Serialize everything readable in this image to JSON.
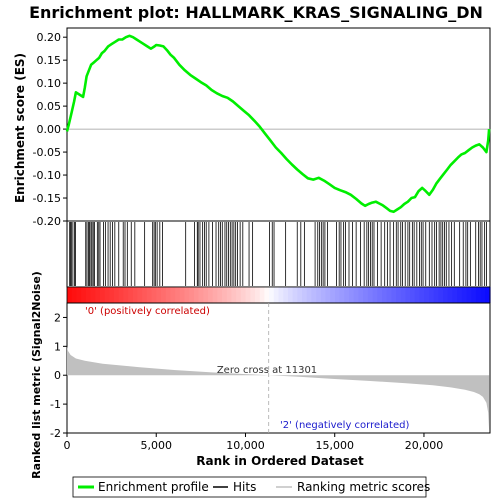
{
  "chart_data": {
    "type": "line",
    "title": "Enrichment plot: HALLMARK_KRAS_SIGNALING_DN",
    "top_panel": {
      "ylabel": "Enrichment score (ES)",
      "ylim": [
        -0.2,
        0.22
      ],
      "yticks": [
        "0.20",
        "0.15",
        "0.10",
        "0.05",
        "0.00",
        "-0.05",
        "-0.10",
        "-0.15",
        "-0.20"
      ],
      "ytick_values": [
        0.2,
        0.15,
        0.1,
        0.05,
        0.0,
        -0.05,
        -0.1,
        -0.15,
        -0.2
      ],
      "series": [
        {
          "name": "Enrichment profile",
          "color": "#00ee00",
          "x": [
            0,
            100,
            250,
            400,
            500,
            700,
            900,
            1000,
            1100,
            1200,
            1350,
            1500,
            1650,
            1800,
            1950,
            2100,
            2300,
            2500,
            2700,
            2900,
            3100,
            3300,
            3500,
            3700,
            3900,
            4100,
            4300,
            4500,
            4700,
            4900,
            5000,
            5200,
            5400,
            5600,
            5800,
            6000,
            6300,
            6600,
            6900,
            7200,
            7500,
            7800,
            8100,
            8400,
            8700,
            9000,
            9300,
            9600,
            9900,
            10200,
            10500,
            10800,
            11100,
            11400,
            11700,
            12000,
            12300,
            12600,
            12900,
            13200,
            13500,
            13800,
            14100,
            14400,
            14700,
            15000,
            15300,
            15600,
            15900,
            16200,
            16500,
            16700,
            16900,
            17100,
            17300,
            17500,
            17700,
            17900,
            18100,
            18300,
            18500,
            18700,
            18900,
            19100,
            19300,
            19500,
            19700,
            19900,
            20100,
            20300,
            20500,
            20700,
            20900,
            21100,
            21300,
            21500,
            21700,
            21900,
            22100,
            22300,
            22500,
            22700,
            22900,
            23100,
            23300,
            23500,
            23600,
            23650
          ],
          "y": [
            -0.005,
            0.01,
            0.035,
            0.06,
            0.08,
            0.075,
            0.07,
            0.09,
            0.115,
            0.125,
            0.14,
            0.145,
            0.15,
            0.155,
            0.165,
            0.17,
            0.18,
            0.185,
            0.19,
            0.195,
            0.195,
            0.2,
            0.203,
            0.2,
            0.195,
            0.19,
            0.185,
            0.18,
            0.175,
            0.18,
            0.183,
            0.182,
            0.18,
            0.172,
            0.162,
            0.155,
            0.14,
            0.128,
            0.118,
            0.11,
            0.102,
            0.095,
            0.085,
            0.078,
            0.072,
            0.068,
            0.06,
            0.05,
            0.04,
            0.03,
            0.018,
            0.005,
            -0.01,
            -0.025,
            -0.04,
            -0.052,
            -0.065,
            -0.077,
            -0.088,
            -0.098,
            -0.107,
            -0.11,
            -0.106,
            -0.112,
            -0.12,
            -0.128,
            -0.133,
            -0.137,
            -0.143,
            -0.152,
            -0.162,
            -0.167,
            -0.163,
            -0.16,
            -0.158,
            -0.162,
            -0.166,
            -0.172,
            -0.178,
            -0.18,
            -0.175,
            -0.17,
            -0.163,
            -0.158,
            -0.15,
            -0.148,
            -0.135,
            -0.128,
            -0.135,
            -0.143,
            -0.132,
            -0.118,
            -0.108,
            -0.098,
            -0.088,
            -0.078,
            -0.07,
            -0.062,
            -0.055,
            -0.052,
            -0.046,
            -0.04,
            -0.036,
            -0.033,
            -0.04,
            -0.05,
            -0.025,
            0.0
          ]
        }
      ]
    },
    "hits_panel": {
      "hit_positions": [
        150,
        200,
        260,
        330,
        420,
        480,
        1050,
        1120,
        1200,
        1260,
        1340,
        1400,
        1470,
        1540,
        1700,
        1780,
        1850,
        2050,
        2150,
        2300,
        2420,
        2550,
        2680,
        2900,
        3150,
        3250,
        3380,
        3600,
        3800,
        4350,
        4800,
        4880,
        4950,
        5050,
        5200,
        5350,
        6650,
        7150,
        7300,
        7350,
        7450,
        7600,
        7700,
        7800,
        7950,
        8150,
        8350,
        8500,
        8600,
        8700,
        8850,
        8950,
        9050,
        9150,
        9250,
        9350,
        9450,
        9550,
        9700,
        9850,
        10200,
        10400,
        11350,
        11500,
        11600,
        12250,
        12900,
        13100,
        13300,
        13900,
        14050,
        14150,
        14250,
        14350,
        14450,
        14600,
        15100,
        15250,
        15350,
        15500,
        15600,
        15800,
        16000,
        16200,
        16450,
        16650,
        16800,
        16900,
        17000,
        17100,
        17200,
        17400,
        17600,
        17800,
        17950,
        18100,
        18300,
        18450,
        18550,
        18700,
        18800,
        18950,
        19100,
        19200,
        19350,
        19450,
        19600,
        19750,
        19850,
        19950,
        20100,
        20300,
        20450,
        20600,
        20700,
        20850,
        20950,
        21050,
        21150,
        21250,
        21400,
        21550,
        21700,
        22000,
        22200,
        22350,
        22450,
        22600,
        22900,
        23050,
        23150,
        23250,
        23400,
        23500
      ]
    },
    "ranked_panel": {
      "ylabel": "Ranked list metric (Signal2Noise)",
      "xlabel": "Rank in Ordered Dataset",
      "ylim": [
        -2,
        2.5
      ],
      "yticks": [
        "2",
        "1",
        "0",
        "-1",
        "-2"
      ],
      "ytick_values": [
        2,
        1,
        0,
        -1,
        -2
      ],
      "xlim": [
        0,
        23700
      ],
      "xticks": [
        "0",
        "5,000",
        "10,000",
        "15,000",
        "20,000"
      ],
      "xtick_values": [
        0,
        5000,
        10000,
        15000,
        20000
      ],
      "zero_cross": 11301,
      "zero_cross_label": "Zero cross at 11301",
      "positive_label": "'0' (positively correlated)",
      "negative_label": "'2' (negatively correlated)",
      "metric_x": [
        0,
        50,
        200,
        500,
        1000,
        2000,
        4000,
        6000,
        8000,
        10000,
        11301,
        13000,
        15000,
        17000,
        19000,
        20500,
        21500,
        22300,
        22800,
        23100,
        23300,
        23500,
        23600,
        23650
      ],
      "metric_y": [
        1.0,
        0.85,
        0.7,
        0.58,
        0.5,
        0.4,
        0.28,
        0.18,
        0.1,
        0.04,
        0.0,
        -0.05,
        -0.13,
        -0.2,
        -0.28,
        -0.35,
        -0.42,
        -0.5,
        -0.58,
        -0.66,
        -0.75,
        -0.95,
        -1.3,
        -1.9
      ]
    },
    "legend": {
      "placement": "bottom",
      "items": [
        {
          "label": "Enrichment profile",
          "color": "#00ee00"
        },
        {
          "label": "Hits",
          "color": "#000000"
        },
        {
          "label": "Ranking metric scores",
          "color": "#c0c0c0"
        }
      ]
    },
    "colors": {
      "positive": "#ff0000",
      "negative": "#0000ff",
      "positive_label_color": "#cc0000",
      "negative_label_color": "#1a1acc",
      "metric_fill": "#c0c0c0"
    }
  }
}
